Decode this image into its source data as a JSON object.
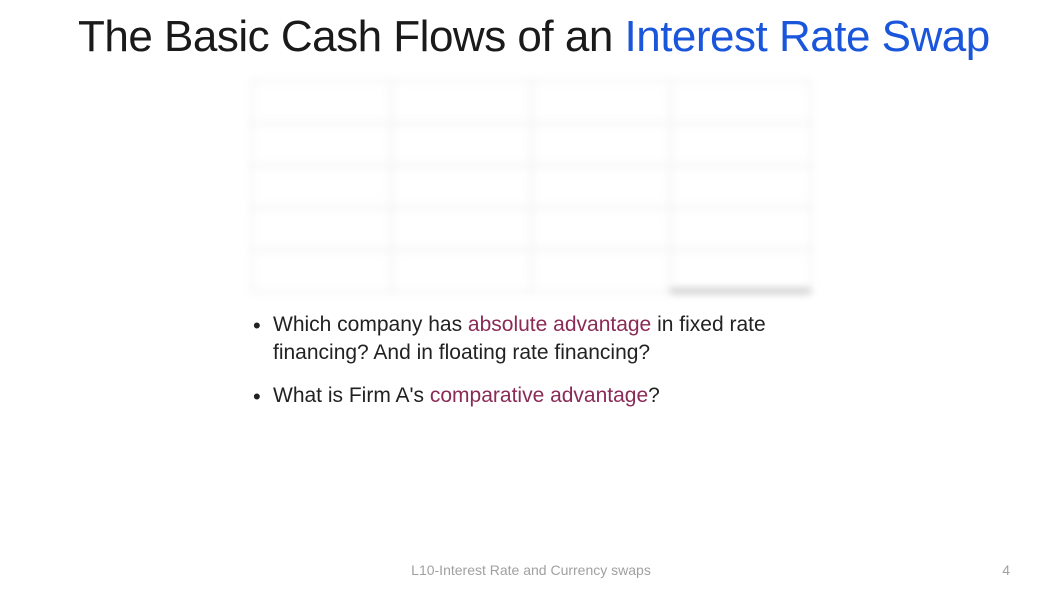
{
  "title": {
    "plain_part": "The Basic Cash Flows of an ",
    "accent_part": "Interest Rate Swap"
  },
  "table": {
    "type": "table",
    "rows": 5,
    "cols": 4,
    "blurred": true,
    "border_color": "#b8b8b8",
    "emphasis_cell": {
      "row": 4,
      "col": 3,
      "border_bottom_color": "#555555"
    },
    "background_color": "#ffffff"
  },
  "bullets": [
    {
      "segments": [
        {
          "text": "Which company has ",
          "style": "plain"
        },
        {
          "text": "absolute advantage",
          "style": "term"
        },
        {
          "text": " in fixed rate financing? And in floating rate financing?",
          "style": "plain"
        }
      ]
    },
    {
      "segments": [
        {
          "text": "What is Firm A's ",
          "style": "plain"
        },
        {
          "text": "comparative advantage",
          "style": "term"
        },
        {
          "text": "?",
          "style": "plain"
        }
      ]
    }
  ],
  "footer": {
    "center": "L10-Interest Rate and Currency swaps",
    "page_number": "4"
  },
  "colors": {
    "title_accent": "#1a56db",
    "term_color": "#8a2a56",
    "body_text": "#222222",
    "footer_text": "#a0a0a0",
    "background": "#ffffff"
  },
  "typography": {
    "title_fontsize_pt": 33,
    "body_fontsize_pt": 16,
    "footer_fontsize_pt": 10,
    "font_family": "Segoe UI / Calibri-like sans-serif"
  }
}
